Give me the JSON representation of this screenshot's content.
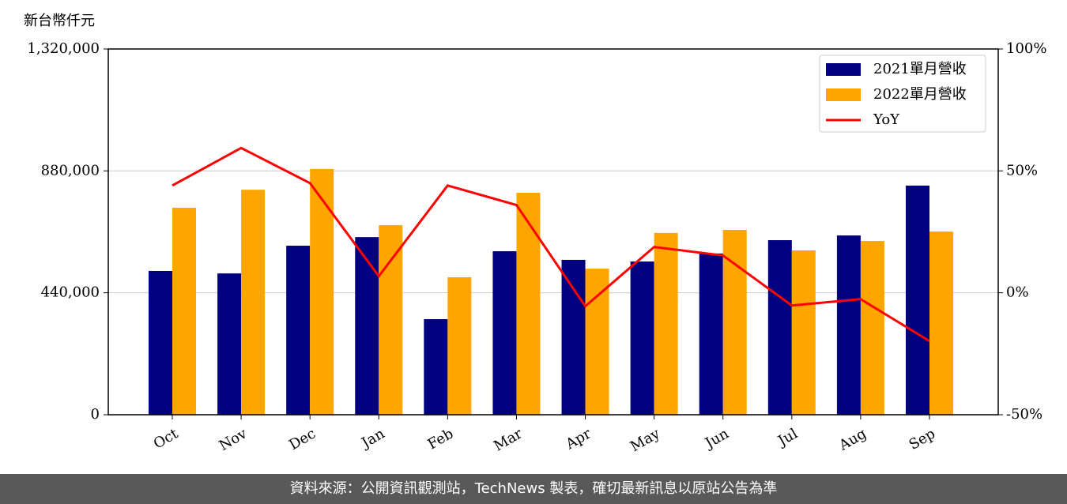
{
  "chart_data": {
    "type": "bar",
    "ylabel": "新台幣仟元",
    "categories": [
      "Oct",
      "Nov",
      "Dec",
      "Jan",
      "Feb",
      "Mar",
      "Apr",
      "May",
      "Jun",
      "Jul",
      "Aug",
      "Sep"
    ],
    "series": [
      {
        "name": "2021單月營收",
        "color": "#000080",
        "values": [
          519000,
          510000,
          610000,
          641000,
          345000,
          590000,
          559000,
          553000,
          582000,
          630000,
          647000,
          827000
        ]
      },
      {
        "name": "2022單月營收",
        "color": "#ffa500",
        "values": [
          747000,
          812000,
          887000,
          684000,
          496000,
          801000,
          527000,
          656000,
          667000,
          593000,
          627000,
          661000
        ]
      },
      {
        "name": "YoY",
        "color": "#ff0000",
        "type": "line",
        "axis": "y2",
        "values": [
          44,
          59.4,
          45,
          6.8,
          44,
          36,
          -5.5,
          18.8,
          15.3,
          -5.2,
          -2.6,
          -19.8
        ]
      }
    ],
    "ylim": [
      0,
      1320000
    ],
    "yticks": [
      0,
      {
        "value": 440000,
        "label": "440,000"
      },
      {
        "value": 880000,
        "label": "880,000"
      },
      {
        "value": 1320000,
        "label": "1,320,000"
      }
    ],
    "y2lim": [
      -50,
      100
    ],
    "y2ticks": [
      {
        "value": -50,
        "label": "-50%"
      },
      {
        "value": 0,
        "label": "0%"
      },
      {
        "value": 50,
        "label": "50%"
      },
      {
        "value": 100,
        "label": "100%"
      }
    ],
    "grid": true,
    "legend": "upper right"
  },
  "footer": "資料來源：公開資訊觀測站，TechNews 製表，確切最新訊息以原站公告為準"
}
